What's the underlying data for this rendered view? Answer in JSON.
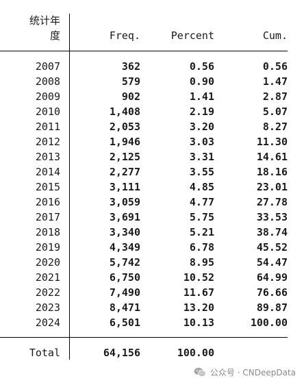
{
  "table": {
    "header": {
      "var_label_line1": "统计年",
      "var_label_line2": "度",
      "freq": "Freq.",
      "percent": "Percent",
      "cum": "Cum."
    },
    "rows": [
      {
        "year": "2007",
        "freq": "362",
        "percent": "0.56",
        "cum": "0.56"
      },
      {
        "year": "2008",
        "freq": "579",
        "percent": "0.90",
        "cum": "1.47"
      },
      {
        "year": "2009",
        "freq": "902",
        "percent": "1.41",
        "cum": "2.87"
      },
      {
        "year": "2010",
        "freq": "1,408",
        "percent": "2.19",
        "cum": "5.07"
      },
      {
        "year": "2011",
        "freq": "2,053",
        "percent": "3.20",
        "cum": "8.27"
      },
      {
        "year": "2012",
        "freq": "1,946",
        "percent": "3.03",
        "cum": "11.30"
      },
      {
        "year": "2013",
        "freq": "2,125",
        "percent": "3.31",
        "cum": "14.61"
      },
      {
        "year": "2014",
        "freq": "2,277",
        "percent": "3.55",
        "cum": "18.16"
      },
      {
        "year": "2015",
        "freq": "3,111",
        "percent": "4.85",
        "cum": "23.01"
      },
      {
        "year": "2016",
        "freq": "3,059",
        "percent": "4.77",
        "cum": "27.78"
      },
      {
        "year": "2017",
        "freq": "3,691",
        "percent": "5.75",
        "cum": "33.53"
      },
      {
        "year": "2018",
        "freq": "3,340",
        "percent": "5.21",
        "cum": "38.74"
      },
      {
        "year": "2019",
        "freq": "4,349",
        "percent": "6.78",
        "cum": "45.52"
      },
      {
        "year": "2020",
        "freq": "5,742",
        "percent": "8.95",
        "cum": "54.47"
      },
      {
        "year": "2021",
        "freq": "6,750",
        "percent": "10.52",
        "cum": "64.99"
      },
      {
        "year": "2022",
        "freq": "7,490",
        "percent": "11.67",
        "cum": "76.66"
      },
      {
        "year": "2023",
        "freq": "8,471",
        "percent": "13.20",
        "cum": "89.87"
      },
      {
        "year": "2024",
        "freq": "6,501",
        "percent": "10.13",
        "cum": "100.00"
      }
    ],
    "total": {
      "label": "Total",
      "freq": "64,156",
      "percent": "100.00"
    }
  },
  "watermark": {
    "icon": "wechat-icon",
    "text": "公众号 · CNDeepData"
  }
}
